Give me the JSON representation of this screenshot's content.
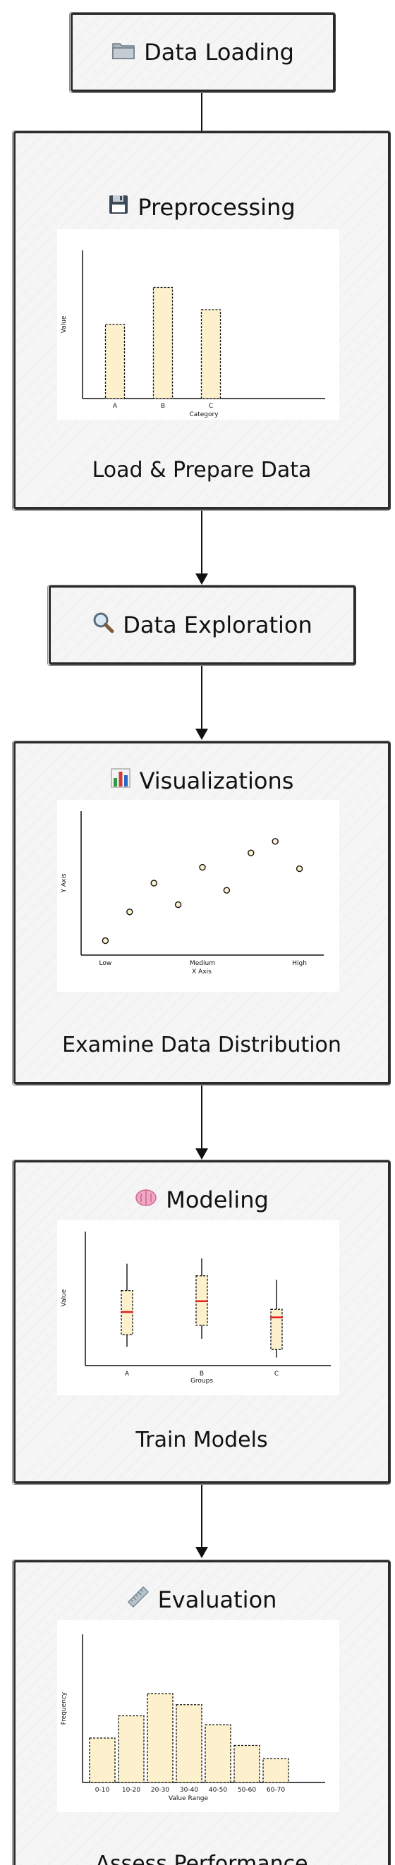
{
  "nodes": {
    "data_loading": {
      "label": "Data Loading",
      "icon": "folder-icon"
    },
    "preprocessing": {
      "label": "Preprocessing",
      "icon": "floppy-disk-icon",
      "caption": "Load & Prepare Data"
    },
    "data_exploration": {
      "label": "Data Exploration",
      "icon": "magnifier-icon"
    },
    "visualizations": {
      "label": "Visualizations",
      "icon": "bar-chart-icon",
      "caption": "Examine Data Distribution"
    },
    "modeling": {
      "label": "Modeling",
      "icon": "brain-icon",
      "caption": "Train Models"
    },
    "evaluation": {
      "label": "Evaluation",
      "icon": "ruler-icon",
      "caption": "Assess Performance"
    }
  },
  "colors": {
    "fill": "#fcf1cc",
    "stroke": "#111111",
    "median": "#e02020"
  },
  "chart_data": [
    {
      "type": "bar",
      "categories": [
        "A",
        "B",
        "C"
      ],
      "values": [
        10,
        15,
        12
      ],
      "xlabel": "Category",
      "ylabel": "Value",
      "ylim": [
        0,
        20
      ]
    },
    {
      "type": "scatter",
      "categories": [
        "Low",
        "Medium",
        "High"
      ],
      "x": [
        0,
        0.5,
        1,
        1.5,
        2,
        2.5,
        3,
        3.5,
        4
      ],
      "y": [
        1,
        3,
        5,
        3.5,
        6.1,
        4.5,
        7.1,
        7.9,
        6
      ],
      "xlabel": "X Axis",
      "ylabel": "Y Axis",
      "xlim": [
        -0.5,
        4.5
      ],
      "ylim": [
        0,
        10
      ]
    },
    {
      "type": "box",
      "categories": [
        "A",
        "B",
        "C"
      ],
      "boxes": [
        {
          "whisker_low": 1.4,
          "q1": 2.3,
          "median": 4.0,
          "q3": 5.6,
          "whisker_high": 7.6
        },
        {
          "whisker_low": 2.0,
          "q1": 3.0,
          "median": 4.8,
          "q3": 6.7,
          "whisker_high": 8.0
        },
        {
          "whisker_low": 0.6,
          "q1": 1.2,
          "median": 3.6,
          "q3": 4.2,
          "whisker_high": 6.4
        }
      ],
      "xlabel": "Groups",
      "ylabel": "Value",
      "ylim": [
        0,
        10
      ]
    },
    {
      "type": "histogram",
      "categories": [
        "0-10",
        "10-20",
        "20-30",
        "30-40",
        "40-50",
        "50-60",
        "60-70"
      ],
      "values": [
        6,
        9,
        12,
        10.5,
        7.8,
        5,
        3.2
      ],
      "xlabel": "Value Range",
      "ylabel": "Frequency",
      "ylim": [
        0,
        20
      ]
    }
  ]
}
